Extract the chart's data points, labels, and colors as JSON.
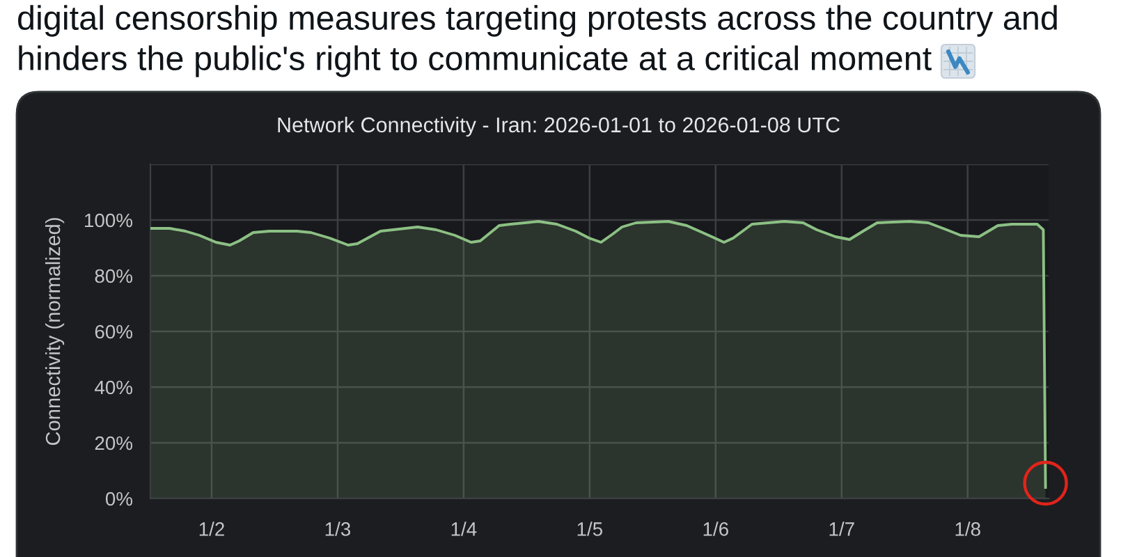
{
  "chart_data": {
    "type": "area",
    "title": "Network Connectivity - Iran: 2026-01-01 to 2026-01-08 UTC",
    "ylabel": "Connectivity (normalized)",
    "annotations": [
      "digital censorship measures targeting protests across the country and",
      "hinders the public's right to communicate at a critical moment"
    ],
    "x": [
      "2026-01-01T12:20",
      "2026-01-01T16:00",
      "2026-01-01T19:00",
      "2026-01-01T21:40",
      "2026-01-02T00:50",
      "2026-01-02T03:30",
      "2026-01-02T05:15",
      "2026-01-02T07:55",
      "2026-01-02T11:00",
      "2026-01-02T16:15",
      "2026-01-02T18:55",
      "2026-01-02T22:30",
      "2026-01-03T02:00",
      "2026-01-03T03:45",
      "2026-01-03T08:10",
      "2026-01-03T15:15",
      "2026-01-03T18:45",
      "2026-01-03T22:20",
      "2026-01-04T01:25",
      "2026-01-04T03:10",
      "2026-01-04T06:45",
      "2026-01-04T08:55",
      "2026-01-04T14:15",
      "2026-01-04T17:45",
      "2026-01-04T21:20",
      "2026-01-04T23:55",
      "2026-01-05T02:10",
      "2026-01-05T04:25",
      "2026-01-05T06:10",
      "2026-01-05T08:50",
      "2026-01-05T15:00",
      "2026-01-05T18:30",
      "2026-01-05T22:05",
      "2026-01-06T01:35",
      "2026-01-06T03:20",
      "2026-01-06T06:55",
      "2026-01-06T13:05",
      "2026-01-06T16:40",
      "2026-01-06T19:15",
      "2026-01-06T22:50",
      "2026-01-07T01:30",
      "2026-01-07T04:05",
      "2026-01-07T06:45",
      "2026-01-07T12:55",
      "2026-01-07T16:30",
      "2026-01-07T20:00",
      "2026-01-07T22:40",
      "2026-01-08T02:10",
      "2026-01-08T05:45",
      "2026-01-08T08:25",
      "2026-01-08T13:15",
      "2026-01-08T14:25",
      "2026-01-08T14:50"
    ],
    "series": [
      {
        "color": "#8cc084",
        "values": [
          97,
          97,
          96,
          94.5,
          92,
          91,
          92.5,
          95.5,
          96,
          96,
          95.5,
          93.5,
          91,
          91.5,
          96,
          97.5,
          96.5,
          94.5,
          92,
          92.5,
          98,
          98.5,
          99.5,
          98.5,
          96,
          93.5,
          92,
          95,
          97.5,
          99,
          99.5,
          98,
          95,
          92,
          93.5,
          98.5,
          99.5,
          99,
          96.5,
          94,
          93,
          96,
          99,
          99.5,
          99,
          96.5,
          94.5,
          94,
          98,
          98.5,
          98.5,
          96.5,
          4
        ]
      }
    ],
    "xlim": [
      "2026-01-01T12:20",
      "2026-01-08T15:25"
    ],
    "xticks": [
      {
        "value": "2026-01-02",
        "label": "1/2"
      },
      {
        "value": "2026-01-03",
        "label": "1/3"
      },
      {
        "value": "2026-01-04",
        "label": "1/4"
      },
      {
        "value": "2026-01-05",
        "label": "1/5"
      },
      {
        "value": "2026-01-06",
        "label": "1/6"
      },
      {
        "value": "2026-01-07",
        "label": "1/7"
      },
      {
        "value": "2026-01-08",
        "label": "1/8"
      }
    ],
    "ylim": [
      0,
      120
    ],
    "yticks": [
      {
        "value": 0,
        "label": "0%"
      },
      {
        "value": 20,
        "label": "20%"
      },
      {
        "value": 40,
        "label": "40%"
      },
      {
        "value": 60,
        "label": "60%"
      },
      {
        "value": 80,
        "label": "80%"
      },
      {
        "value": 100,
        "label": "100%"
      },
      {
        "value": 120,
        "label": null
      }
    ],
    "grid": true
  }
}
